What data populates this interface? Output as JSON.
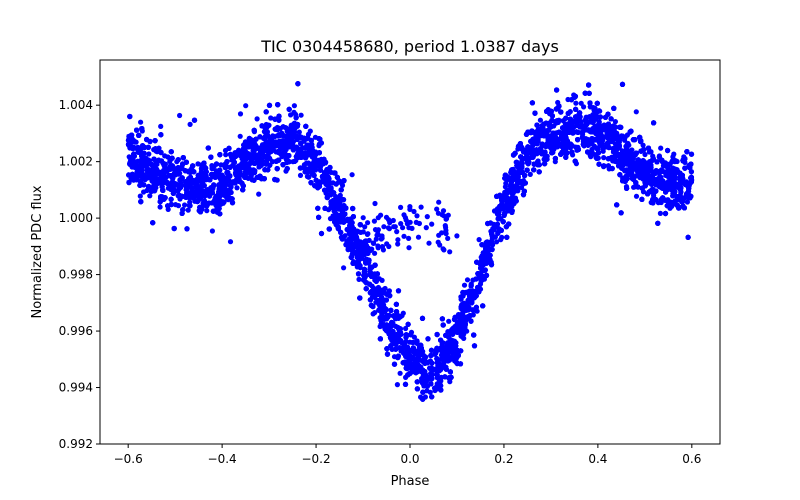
{
  "chart_data": {
    "type": "scatter",
    "title": "TIC 0304458680, period 1.0387 days",
    "xlabel": "Phase",
    "ylabel": "Normalized PDC flux",
    "xlim": [
      -0.66,
      0.66
    ],
    "ylim": [
      0.992,
      1.0056
    ],
    "xticks": [
      -0.6,
      -0.4,
      -0.2,
      0.0,
      0.2,
      0.4,
      0.6
    ],
    "xtick_labels": [
      "−0.6",
      "−0.4",
      "−0.2",
      "0.0",
      "0.2",
      "0.4",
      "0.6"
    ],
    "yticks": [
      0.992,
      0.994,
      0.996,
      0.998,
      1.0,
      1.002,
      1.004
    ],
    "ytick_labels": [
      "0.992",
      "0.994",
      "0.996",
      "0.998",
      "1.000",
      "1.002",
      "1.004"
    ],
    "grid": false,
    "series": [
      {
        "name": "PDC flux",
        "color": "#0000ff",
        "marker": "circle",
        "x_range": [
          -0.6,
          0.6
        ],
        "trend": {
          "x": [
            -0.6,
            -0.55,
            -0.5,
            -0.45,
            -0.4,
            -0.35,
            -0.3,
            -0.25,
            -0.2,
            -0.15,
            -0.1,
            -0.05,
            0.0,
            0.05,
            0.1,
            0.15,
            0.2,
            0.25,
            0.3,
            0.35,
            0.4,
            0.45,
            0.5,
            0.55,
            0.6
          ],
          "y": [
            1.0023,
            1.0017,
            1.0012,
            1.0011,
            1.0013,
            1.002,
            1.0025,
            1.0028,
            1.002,
            1.0003,
            0.9985,
            0.9965,
            0.995,
            0.9945,
            0.9958,
            0.998,
            1.0005,
            1.0022,
            1.003,
            1.0032,
            1.003,
            1.0023,
            1.0017,
            1.0013,
            1.0012
          ]
        },
        "scatter_width": 0.0009,
        "n_points": 9000,
        "secondary_branch": {
          "x": [
            -0.1,
            -0.05,
            0.0,
            0.05,
            0.1
          ],
          "y": [
            0.9993,
            0.9996,
            0.9998,
            0.9997,
            0.9993
          ]
        }
      }
    ]
  }
}
